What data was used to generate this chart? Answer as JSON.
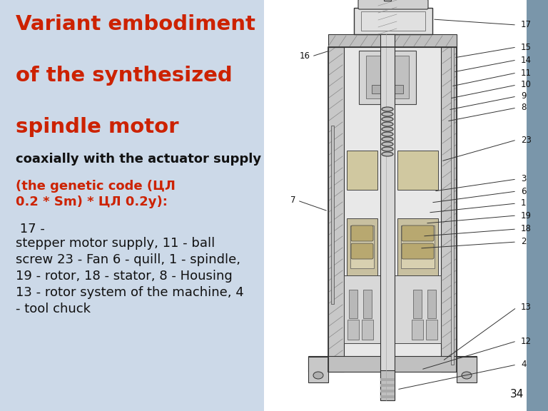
{
  "bg_color": "#ccd9e8",
  "bg_color_right_strip": "#7a96aa",
  "diagram_bg": "#ffffff",
  "title_color": "#cc2200",
  "body_color": "#111111",
  "slide_number": "34",
  "title_line1": "Variant embodiment",
  "title_line2": "of the synthesized",
  "title_line3": "spindle motor",
  "subtitle": "coaxially with the actuator supply",
  "red_body": "(the genetic code (ЦЛ\n0.2 * Sm) * ЦЛ 0.2y):",
  "black_body_inline": " 17 -",
  "black_body_rest": "stepper motor supply, 11 - ball\nscrew 23 - Fan 6 - quill, 1 - spindle,\n19 - rotor, 18 - stator, 8 - Housing\n13 - rotor system of the machine, 4\n- tool chuck",
  "title_fontsize": 21,
  "subtitle_fontsize": 13,
  "body_fontsize": 13,
  "slide_num_fontsize": 11
}
